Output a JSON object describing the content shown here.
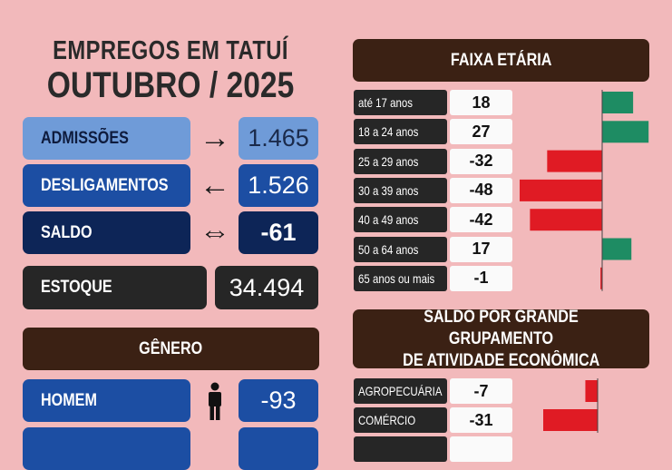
{
  "header": {
    "line1": "EMPREGOS EM TATUÍ",
    "line2": "OUTUBRO / 2025"
  },
  "summary": [
    {
      "label": "ADMISSÕES",
      "value": "1.465",
      "arrow": "→"
    },
    {
      "label": "DESLIGAMENTOS",
      "value": "1.526",
      "arrow": "←"
    },
    {
      "label": "SALDO",
      "value": "-61",
      "arrow": "⇔"
    }
  ],
  "estoque": {
    "label": "ESTOQUE",
    "value": "34.494"
  },
  "genero": {
    "title": "GÊNERO",
    "rows": [
      {
        "label": "HOMEM",
        "value": "-93",
        "icon": "man-icon"
      }
    ]
  },
  "colors": {
    "positive": "#1e8c63",
    "negative": "#e01b24"
  },
  "chart_data": [
    {
      "type": "bar",
      "title": "FAIXA ETÁRIA",
      "categories": [
        "até 17 anos",
        "18 a 24 anos",
        "25 a 29 anos",
        "30 a 39 anos",
        "40 a 49 anos",
        "50 a 64 anos",
        "65 anos ou mais"
      ],
      "values": [
        18,
        27,
        -32,
        -48,
        -42,
        17,
        -1
      ]
    },
    {
      "type": "bar",
      "title": "SALDO POR GRANDE GRUPAMENTO DE ATIVIDADE ECONÔMICA",
      "title_lines": [
        "SALDO POR GRANDE GRUPAMENTO",
        "DE ATIVIDADE ECONÔMICA"
      ],
      "categories": [
        "AGROPECUÁRIA",
        "COMÉRCIO"
      ],
      "values": [
        -7,
        -31
      ]
    }
  ]
}
